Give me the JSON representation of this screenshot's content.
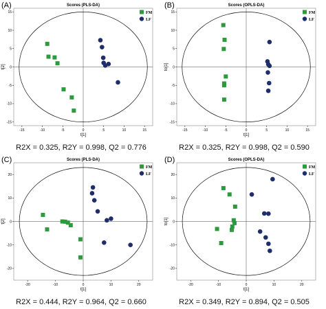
{
  "colors": {
    "fm": "#2e9a3e",
    "lf": "#1f2d6b",
    "axis": "#000000",
    "frame": "#888888"
  },
  "chart_data": [
    {
      "type": "scatter",
      "panel_label": "(A)",
      "title": "Scores (PLS-DA)",
      "xlabel": "t[1]",
      "ylabel": "t[2]",
      "xlim": [
        -17,
        17
      ],
      "ylim": [
        -16,
        16
      ],
      "xticks": [
        -15,
        -10,
        -5,
        0,
        5,
        10,
        15
      ],
      "yticks": [
        -15,
        -10,
        -5,
        0,
        5,
        10,
        15
      ],
      "stats": "R2X = 0.325, R2Y = 0.998, Q2 = 0.776",
      "ellipse": {
        "rx": 15.7,
        "ry": 15.0
      },
      "series": [
        {
          "name": "FM",
          "marker": "square",
          "x": [
            -8.8,
            -8.5,
            -7.0,
            -6.3,
            -4.8,
            -2.8,
            -2.3
          ],
          "y": [
            6.3,
            2.8,
            2.6,
            1.0,
            -6.1,
            -8.3,
            -11.9
          ]
        },
        {
          "name": "LF",
          "marker": "circle",
          "x": [
            4.2,
            4.6,
            4.9,
            5.0,
            5.4,
            6.2,
            8.5
          ],
          "y": [
            7.3,
            5.4,
            2.5,
            1.1,
            0.4,
            0.8,
            -4.2
          ]
        }
      ]
    },
    {
      "type": "scatter",
      "panel_label": "(B)",
      "title": "Scores (OPLS-DA)",
      "xlabel": "t[1]",
      "ylabel": "to[1]",
      "xlim": [
        -17,
        17
      ],
      "ylim": [
        -16,
        16
      ],
      "xticks": [
        -15,
        -10,
        -5,
        0,
        5,
        10,
        15
      ],
      "yticks": [
        -15,
        -10,
        -5,
        0,
        5,
        10,
        15
      ],
      "stats": "R2X = 0.325, R2Y = 0.998, Q2 = 0.590",
      "ellipse": {
        "rx": 15.7,
        "ry": 15.0
      },
      "series": [
        {
          "name": "FM",
          "marker": "square",
          "x": [
            -5.6,
            -5.3,
            -5.5,
            -5.0,
            -5.4,
            -5.4,
            -5.4
          ],
          "y": [
            11.4,
            7.4,
            4.9,
            -2.6,
            -4.5,
            -5.0,
            -8.9
          ]
        },
        {
          "name": "LF",
          "marker": "circle",
          "x": [
            5.7,
            5.2,
            5.4,
            5.7,
            5.3,
            5.6,
            5.4
          ],
          "y": [
            6.8,
            1.5,
            0.7,
            0.3,
            -1.5,
            -4.4,
            -6.5
          ]
        }
      ]
    },
    {
      "type": "scatter",
      "panel_label": "(C)",
      "title": "Scores (PLS-DA)",
      "xlabel": "t[1]",
      "ylabel": "t[2]",
      "xlim": [
        -25,
        25
      ],
      "ylim": [
        -25,
        25
      ],
      "xticks": [
        -20,
        -10,
        0,
        10,
        20
      ],
      "yticks": [
        -20,
        -10,
        0,
        10,
        20
      ],
      "stats": "R2X = 0.444, R2Y = 0.964, Q2 = 0.660",
      "ellipse": {
        "rx": 23.0,
        "ry": 23.0
      },
      "series": [
        {
          "name": "FM",
          "marker": "square",
          "x": [
            -14.5,
            -13.0,
            -7.5,
            -6.5,
            -5.5,
            -4.5,
            -1.0,
            -1.0
          ],
          "y": [
            2.8,
            -3.4,
            0.0,
            -0.1,
            -0.5,
            -1.6,
            -7.6,
            -15.3
          ]
        },
        {
          "name": "LF",
          "marker": "circle",
          "x": [
            3.5,
            3.2,
            4.0,
            5.2,
            8.5,
            10.0,
            7.5,
            17.0
          ],
          "y": [
            14.5,
            12.0,
            9.0,
            4.3,
            0.5,
            1.2,
            -9.0,
            -10.0
          ]
        }
      ]
    },
    {
      "type": "scatter",
      "panel_label": "(D)",
      "title": "Scores (OPLS-DA)",
      "xlabel": "t[1]",
      "ylabel": "to[1]",
      "xlim": [
        -25,
        25
      ],
      "ylim": [
        -25,
        25
      ],
      "xticks": [
        -20,
        -10,
        0,
        10,
        20
      ],
      "yticks": [
        -20,
        -10,
        0,
        10,
        20
      ],
      "stats": "R2X = 0.349, R2Y = 0.894, Q2 = 0.505",
      "ellipse": {
        "rx": 23.0,
        "ry": 23.0
      },
      "series": [
        {
          "name": "FM",
          "marker": "square",
          "x": [
            -8.2,
            -6.0,
            -4.0,
            -4.5,
            -4.2,
            -5.0,
            -5.2,
            -10.5,
            -9.0
          ],
          "y": [
            14.2,
            11.5,
            6.3,
            0.5,
            -0.7,
            -2.2,
            -3.6,
            -3.2,
            -9.2
          ]
        },
        {
          "name": "LF",
          "marker": "circle",
          "x": [
            9.5,
            2.0,
            6.5,
            8.0,
            5.0,
            7.0,
            8.0,
            8.5
          ],
          "y": [
            18.0,
            11.5,
            3.4,
            3.3,
            -4.3,
            -6.8,
            -9.5,
            -12.5
          ]
        }
      ]
    }
  ]
}
